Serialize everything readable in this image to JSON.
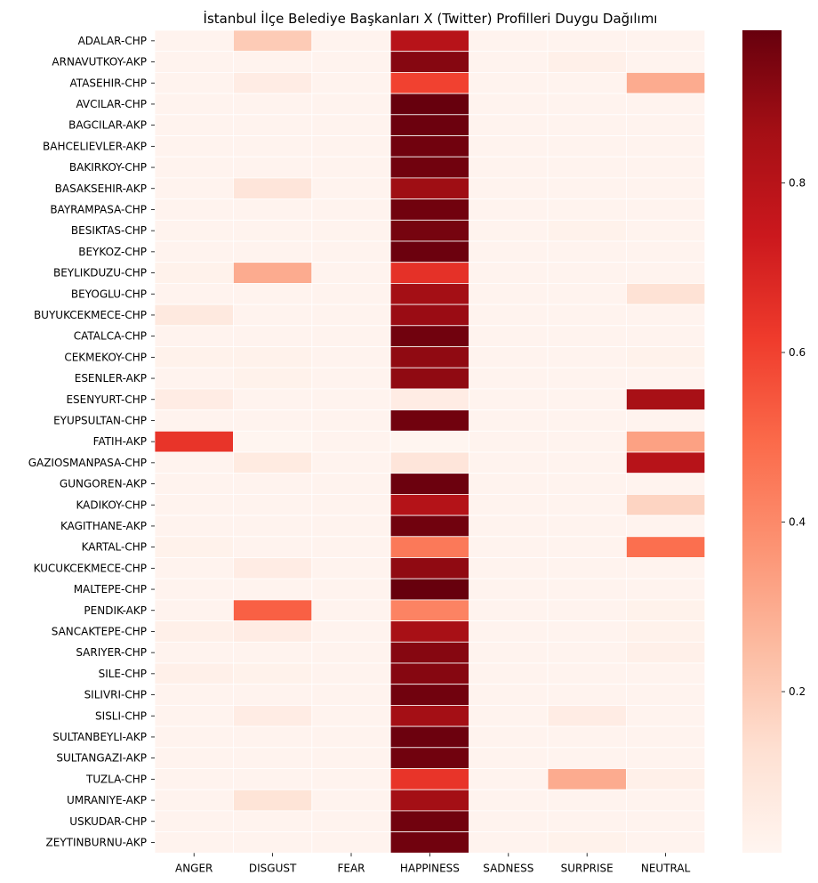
{
  "chart_data": {
    "type": "heatmap",
    "title": "İstanbul İlçe Belediye Başkanları X (Twitter) Profilleri Duygu Dağılımı",
    "xlabel": "",
    "ylabel": "",
    "columns": [
      "ANGER",
      "DISGUST",
      "FEAR",
      "HAPPINESS",
      "SADNESS",
      "SURPRISE",
      "NEUTRAL"
    ],
    "rows": [
      "ADALAR-CHP",
      "ARNAVUTKOY-AKP",
      "ATASEHIR-CHP",
      "AVCILAR-CHP",
      "BAGCILAR-AKP",
      "BAHCELIEVLER-AKP",
      "BAKIRKOY-CHP",
      "BASAKSEHIR-AKP",
      "BAYRAMPASA-CHP",
      "BESIKTAS-CHP",
      "BEYKOZ-CHP",
      "BEYLIKDUZU-CHP",
      "BEYOGLU-CHP",
      "BUYUKCEKMECE-CHP",
      "CATALCA-CHP",
      "CEKMEKOY-CHP",
      "ESENLER-AKP",
      "ESENYURT-CHP",
      "EYUPSULTAN-CHP",
      "FATIH-AKP",
      "GAZIOSMANPASA-CHP",
      "GUNGOREN-AKP",
      "KADIKOY-CHP",
      "KAGITHANE-AKP",
      "KARTAL-CHP",
      "KUCUKCEKMECE-CHP",
      "MALTEPE-CHP",
      "PENDIK-AKP",
      "SANCAKTEPE-CHP",
      "SARIYER-CHP",
      "SILE-CHP",
      "SILIVRI-CHP",
      "SISLI-CHP",
      "SULTANBEYLI-AKP",
      "SULTANGAZI-AKP",
      "TUZLA-CHP",
      "UMRANIYE-AKP",
      "USKUDAR-CHP",
      "ZEYTINBURNU-AKP"
    ],
    "values": [
      [
        0.02,
        0.2,
        0.02,
        0.8,
        0.02,
        0.02,
        0.02
      ],
      [
        0.02,
        0.02,
        0.02,
        0.92,
        0.02,
        0.04,
        0.02
      ],
      [
        0.02,
        0.06,
        0.02,
        0.6,
        0.02,
        0.02,
        0.3
      ],
      [
        0.02,
        0.02,
        0.02,
        0.98,
        0.02,
        0.02,
        0.02
      ],
      [
        0.02,
        0.02,
        0.02,
        0.97,
        0.02,
        0.02,
        0.02
      ],
      [
        0.02,
        0.02,
        0.02,
        0.96,
        0.02,
        0.02,
        0.02
      ],
      [
        0.02,
        0.02,
        0.02,
        0.96,
        0.02,
        0.02,
        0.02
      ],
      [
        0.02,
        0.1,
        0.02,
        0.87,
        0.02,
        0.02,
        0.02
      ],
      [
        0.02,
        0.02,
        0.02,
        0.96,
        0.02,
        0.02,
        0.02
      ],
      [
        0.02,
        0.02,
        0.02,
        0.95,
        0.02,
        0.03,
        0.02
      ],
      [
        0.02,
        0.02,
        0.02,
        0.97,
        0.02,
        0.02,
        0.02
      ],
      [
        0.03,
        0.3,
        0.02,
        0.65,
        0.02,
        0.02,
        0.02
      ],
      [
        0.02,
        0.02,
        0.02,
        0.86,
        0.02,
        0.02,
        0.12
      ],
      [
        0.08,
        0.02,
        0.02,
        0.88,
        0.02,
        0.02,
        0.02
      ],
      [
        0.02,
        0.02,
        0.02,
        0.96,
        0.02,
        0.02,
        0.02
      ],
      [
        0.03,
        0.03,
        0.02,
        0.9,
        0.02,
        0.02,
        0.03
      ],
      [
        0.02,
        0.03,
        0.02,
        0.9,
        0.02,
        0.02,
        0.02
      ],
      [
        0.06,
        0.02,
        0.02,
        0.06,
        0.02,
        0.02,
        0.85
      ],
      [
        0.02,
        0.02,
        0.02,
        0.96,
        0.02,
        0.02,
        0.02
      ],
      [
        0.64,
        0.01,
        0.02,
        0.01,
        0.02,
        0.02,
        0.33
      ],
      [
        0.02,
        0.07,
        0.02,
        0.1,
        0.02,
        0.02,
        0.8
      ],
      [
        0.02,
        0.02,
        0.02,
        0.97,
        0.02,
        0.02,
        0.02
      ],
      [
        0.02,
        0.02,
        0.02,
        0.81,
        0.02,
        0.02,
        0.17
      ],
      [
        0.02,
        0.02,
        0.02,
        0.96,
        0.02,
        0.02,
        0.02
      ],
      [
        0.03,
        0.02,
        0.02,
        0.45,
        0.02,
        0.02,
        0.48
      ],
      [
        0.02,
        0.06,
        0.02,
        0.9,
        0.02,
        0.02,
        0.02
      ],
      [
        0.02,
        0.02,
        0.02,
        0.98,
        0.02,
        0.02,
        0.02
      ],
      [
        0.02,
        0.52,
        0.02,
        0.42,
        0.02,
        0.02,
        0.03
      ],
      [
        0.04,
        0.06,
        0.02,
        0.85,
        0.02,
        0.02,
        0.03
      ],
      [
        0.02,
        0.02,
        0.02,
        0.92,
        0.02,
        0.02,
        0.04
      ],
      [
        0.04,
        0.03,
        0.02,
        0.92,
        0.02,
        0.02,
        0.02
      ],
      [
        0.02,
        0.02,
        0.02,
        0.96,
        0.02,
        0.02,
        0.02
      ],
      [
        0.02,
        0.06,
        0.02,
        0.86,
        0.02,
        0.06,
        0.02
      ],
      [
        0.02,
        0.02,
        0.02,
        0.97,
        0.02,
        0.02,
        0.02
      ],
      [
        0.02,
        0.02,
        0.02,
        0.96,
        0.02,
        0.02,
        0.02
      ],
      [
        0.02,
        0.02,
        0.02,
        0.64,
        0.02,
        0.3,
        0.04
      ],
      [
        0.02,
        0.11,
        0.02,
        0.86,
        0.02,
        0.02,
        0.02
      ],
      [
        0.02,
        0.02,
        0.02,
        0.96,
        0.02,
        0.02,
        0.02
      ],
      [
        0.02,
        0.02,
        0.02,
        0.96,
        0.02,
        0.03,
        0.02
      ]
    ],
    "colorbar": {
      "colormap": "Reds",
      "vmin": 0.01,
      "vmax": 0.98,
      "ticks": [
        0.2,
        0.4,
        0.6,
        0.8
      ],
      "tick_labels": [
        "0.2",
        "0.4",
        "0.6",
        "0.8"
      ]
    },
    "grid": false,
    "legend": "colorbar right"
  }
}
